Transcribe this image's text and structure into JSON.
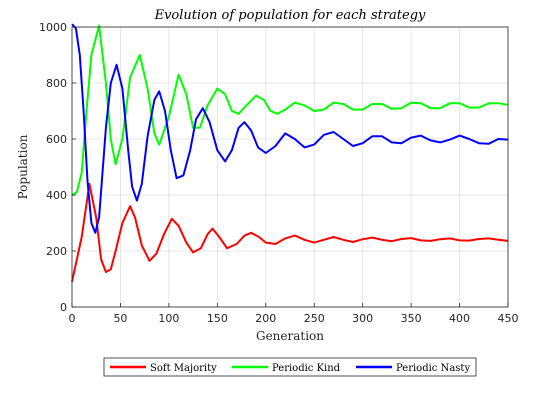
{
  "chart_data": {
    "type": "line",
    "title": "Evolution of population for each strategy",
    "xlabel": "Generation",
    "ylabel": "Population",
    "xlim": [
      0,
      450
    ],
    "ylim": [
      0,
      1000
    ],
    "xticks": [
      0,
      50,
      100,
      150,
      200,
      250,
      300,
      350,
      400,
      450
    ],
    "yticks": [
      0,
      200,
      400,
      600,
      800,
      1000
    ],
    "grid": true,
    "legend": "bottom",
    "series": [
      {
        "name": "Soft Majority",
        "color": "#ff0000",
        "x": [
          0,
          10,
          18,
          25,
          30,
          35,
          40,
          45,
          52,
          60,
          65,
          72,
          80,
          87,
          95,
          103,
          110,
          118,
          125,
          133,
          140,
          145,
          152,
          160,
          170,
          178,
          185,
          193,
          200,
          210,
          220,
          230,
          240,
          250,
          260,
          270,
          280,
          290,
          300,
          310,
          320,
          330,
          340,
          350,
          360,
          370,
          380,
          390,
          400,
          410,
          420,
          430,
          440,
          450
        ],
        "y": [
          90,
          250,
          440,
          320,
          170,
          125,
          135,
          200,
          300,
          360,
          320,
          220,
          165,
          190,
          260,
          315,
          290,
          230,
          195,
          210,
          260,
          280,
          250,
          210,
          225,
          255,
          265,
          250,
          230,
          225,
          245,
          255,
          240,
          230,
          240,
          250,
          240,
          232,
          242,
          248,
          240,
          235,
          243,
          246,
          238,
          236,
          242,
          245,
          238,
          237,
          243,
          245,
          240,
          236
        ]
      },
      {
        "name": "Periodic Kind",
        "color": "#00ff00",
        "x": [
          0,
          5,
          10,
          15,
          20,
          28,
          35,
          40,
          45,
          52,
          60,
          70,
          78,
          85,
          90,
          100,
          110,
          118,
          125,
          132,
          140,
          150,
          158,
          165,
          172,
          180,
          190,
          198,
          205,
          212,
          220,
          230,
          240,
          250,
          260,
          270,
          280,
          290,
          300,
          310,
          320,
          330,
          340,
          350,
          360,
          370,
          380,
          390,
          400,
          410,
          420,
          430,
          440,
          450
        ],
        "y": [
          400,
          410,
          480,
          700,
          900,
          1005,
          800,
          600,
          510,
          600,
          820,
          900,
          780,
          620,
          580,
          680,
          830,
          760,
          640,
          640,
          720,
          780,
          760,
          700,
          690,
          720,
          755,
          740,
          700,
          690,
          705,
          730,
          720,
          700,
          705,
          730,
          725,
          705,
          705,
          725,
          725,
          708,
          710,
          730,
          728,
          710,
          710,
          728,
          728,
          712,
          712,
          727,
          728,
          722
        ]
      },
      {
        "name": "Periodic Nasty",
        "color": "#0000ff",
        "x": [
          0,
          4,
          8,
          12,
          16,
          20,
          24,
          28,
          35,
          40,
          46,
          52,
          58,
          62,
          67,
          72,
          78,
          85,
          90,
          96,
          102,
          108,
          115,
          122,
          128,
          135,
          142,
          150,
          158,
          165,
          172,
          178,
          185,
          192,
          200,
          210,
          220,
          230,
          240,
          250,
          260,
          270,
          280,
          290,
          300,
          310,
          320,
          330,
          340,
          350,
          360,
          370,
          380,
          390,
          400,
          410,
          420,
          430,
          440,
          450
        ],
        "y": [
          1010,
          995,
          900,
          700,
          450,
          300,
          265,
          320,
          640,
          800,
          865,
          780,
          560,
          430,
          380,
          440,
          610,
          740,
          770,
          700,
          560,
          460,
          470,
          560,
          670,
          710,
          660,
          560,
          520,
          560,
          640,
          660,
          630,
          570,
          550,
          575,
          620,
          600,
          570,
          580,
          615,
          625,
          600,
          575,
          585,
          610,
          610,
          588,
          585,
          605,
          612,
          595,
          588,
          598,
          612,
          600,
          585,
          583,
          600,
          598
        ]
      }
    ]
  }
}
